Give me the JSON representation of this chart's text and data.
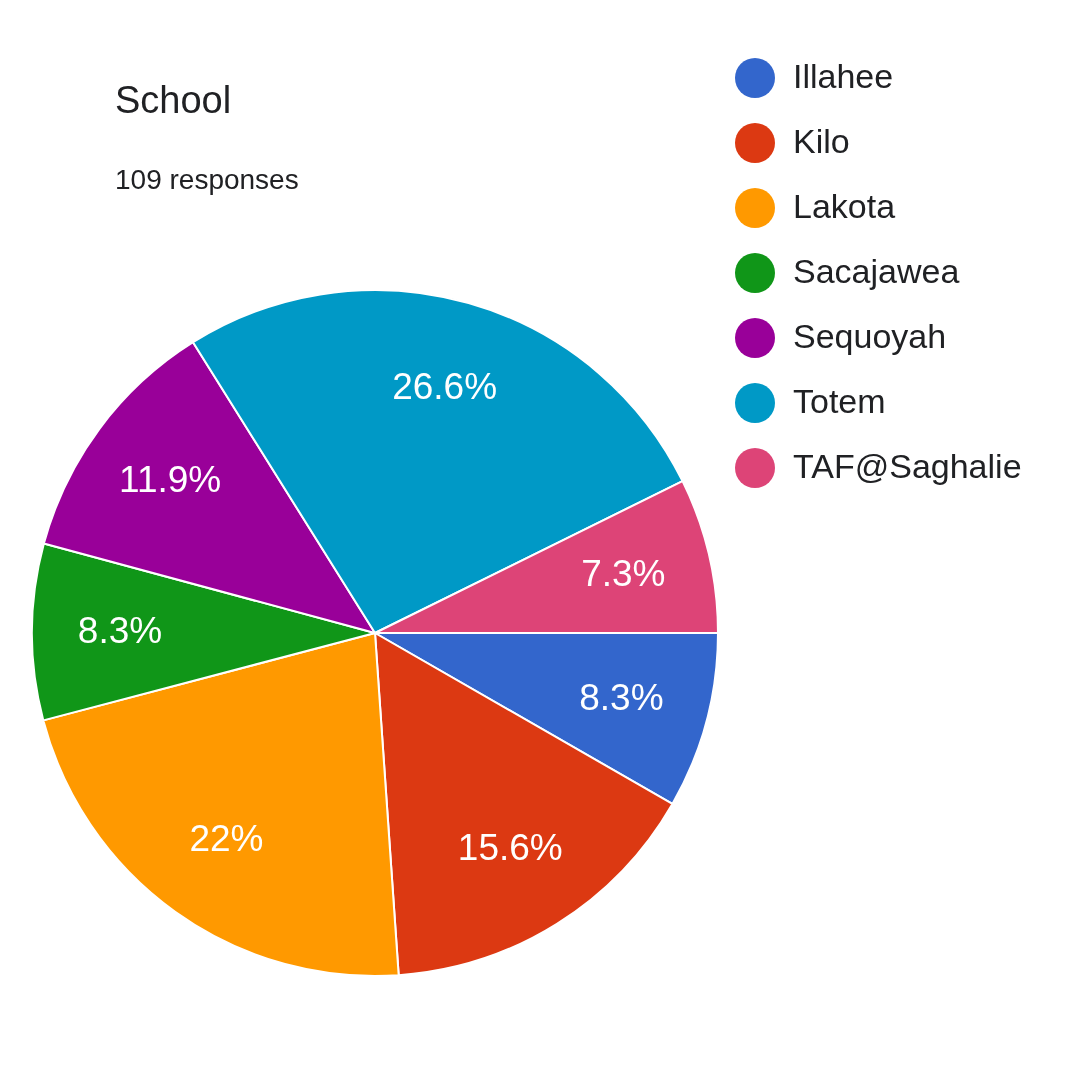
{
  "chart_data": {
    "type": "pie",
    "title": "School",
    "subtitle": "109 responses",
    "categories": [
      "Illahee",
      "Kilo",
      "Lakota",
      "Sacajawea",
      "Sequoyah",
      "Totem",
      "TAF@Saghalie"
    ],
    "values": [
      8.3,
      15.6,
      22,
      8.3,
      11.9,
      26.6,
      7.3
    ],
    "colors": [
      "#3366cc",
      "#dc3912",
      "#ff9900",
      "#109618",
      "#990099",
      "#0099c6",
      "#dd4477"
    ],
    "value_labels": [
      "8.3%",
      "15.6%",
      "22%",
      "8.3%",
      "11.9%",
      "26.6%",
      "7.3%"
    ],
    "legend": "top right"
  }
}
